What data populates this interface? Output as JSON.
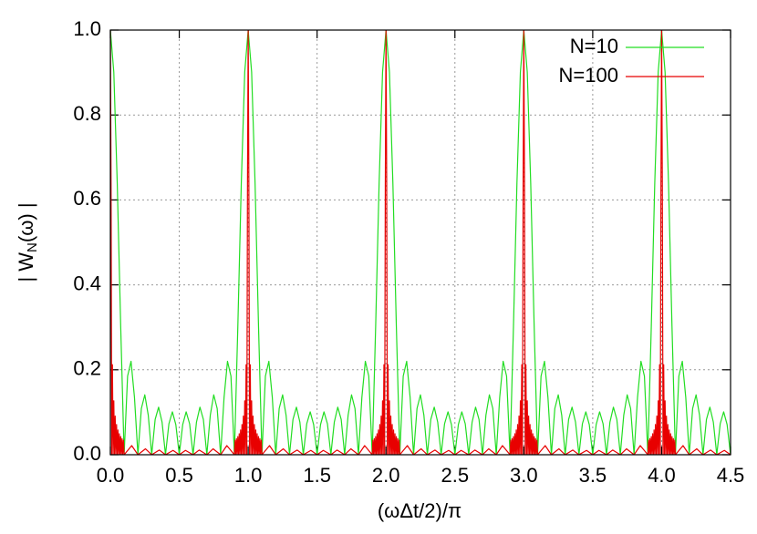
{
  "chart_data": {
    "type": "line",
    "xlabel": "(ωΔt/2)/π",
    "ylabel": {
      "text": "| W",
      "sub": "N",
      "tail": "(ω) |"
    },
    "xlim": [
      0,
      4.5
    ],
    "xticks": [
      {
        "value": 0,
        "label": "0.0"
      },
      0.5,
      {
        "value": 1,
        "label": "1.0"
      },
      1.5,
      {
        "value": 2,
        "label": "2.0"
      },
      2.5,
      {
        "value": 3,
        "label": "3.0"
      },
      3.5,
      {
        "value": 4,
        "label": "4.0"
      },
      4.5
    ],
    "ylim": [
      0,
      1
    ],
    "yticks": [
      {
        "value": 0,
        "label": "0.0"
      },
      0.2,
      0.4,
      0.6,
      0.8,
      {
        "value": 1,
        "label": "1.0"
      }
    ],
    "grid": true,
    "legend": "top-right",
    "series": [
      {
        "name": "N=10",
        "color": "#22dd22",
        "x": [
          0,
          0.025,
          0.05,
          0.075,
          0.1,
          0.125,
          0.15,
          0.175,
          0.2,
          0.225,
          0.25,
          0.275,
          0.3,
          0.325,
          0.35,
          0.375,
          0.4,
          0.425,
          0.45,
          0.475,
          0.5,
          0.525,
          0.55,
          0.575,
          0.6,
          0.625,
          0.65,
          0.675,
          0.7,
          0.725,
          0.75,
          0.775,
          0.8,
          0.825,
          0.85,
          0.875,
          0.9,
          0.925,
          0.95,
          0.975,
          1,
          1.025,
          1.05,
          1.075,
          1.1,
          1.125,
          1.15,
          1.175,
          1.2,
          1.225,
          1.25,
          1.275,
          1.3,
          1.325,
          1.35,
          1.375,
          1.4,
          1.425,
          1.45,
          1.475,
          1.5,
          1.525,
          1.55,
          1.575,
          1.6,
          1.625,
          1.65,
          1.675,
          1.7,
          1.725,
          1.75,
          1.775,
          1.8,
          1.825,
          1.85,
          1.875,
          1.9,
          1.925,
          1.95,
          1.975,
          2,
          2.025,
          2.05,
          2.075,
          2.1,
          2.125,
          2.15,
          2.175,
          2.2,
          2.225,
          2.25,
          2.275,
          2.3,
          2.325,
          2.35,
          2.375,
          2.4,
          2.425,
          2.45,
          2.475,
          2.5,
          2.525,
          2.55,
          2.575,
          2.6,
          2.625,
          2.65,
          2.675,
          2.7,
          2.725,
          2.75,
          2.775,
          2.8,
          2.825,
          2.85,
          2.875,
          2.9,
          2.925,
          2.95,
          2.975,
          3,
          3.025,
          3.05,
          3.075,
          3.1,
          3.125,
          3.15,
          3.175,
          3.2,
          3.225,
          3.25,
          3.275,
          3.3,
          3.325,
          3.35,
          3.375,
          3.4,
          3.425,
          3.45,
          3.475,
          3.5,
          3.525,
          3.55,
          3.575,
          3.6,
          3.625,
          3.65,
          3.675,
          3.7,
          3.725,
          3.75,
          3.775,
          3.8,
          3.825,
          3.85,
          3.875,
          3.9,
          3.925,
          3.95,
          3.975,
          4,
          4.025,
          4.05,
          4.075,
          4.1,
          4.125,
          4.15,
          4.175,
          4.2,
          4.225,
          4.25,
          4.275,
          4.3,
          4.325,
          4.35,
          4.375,
          4.4,
          4.425,
          4.45,
          4.475,
          4.5
        ],
        "values": [
          1,
          0.901,
          0.639,
          0.303,
          0,
          0.185,
          0.22,
          0.135,
          0,
          0.109,
          0.141,
          0.093,
          0,
          0.083,
          0.112,
          0.077,
          0,
          0.073,
          0.101,
          0.071,
          0,
          0.071,
          0.101,
          0.073,
          0,
          0.077,
          0.112,
          0.083,
          0,
          0.093,
          0.141,
          0.109,
          0,
          0.135,
          0.22,
          0.185,
          0,
          0.303,
          0.639,
          0.901,
          1,
          0.901,
          0.639,
          0.303,
          0,
          0.185,
          0.22,
          0.135,
          0,
          0.109,
          0.141,
          0.093,
          0,
          0.083,
          0.112,
          0.077,
          0,
          0.073,
          0.101,
          0.071,
          0,
          0.071,
          0.101,
          0.073,
          0,
          0.077,
          0.112,
          0.083,
          0,
          0.093,
          0.141,
          0.109,
          0,
          0.135,
          0.22,
          0.185,
          0,
          0.303,
          0.639,
          0.901,
          1,
          0.901,
          0.639,
          0.303,
          0,
          0.185,
          0.22,
          0.135,
          0,
          0.109,
          0.141,
          0.093,
          0,
          0.083,
          0.112,
          0.077,
          0,
          0.073,
          0.101,
          0.071,
          0,
          0.071,
          0.101,
          0.073,
          0,
          0.077,
          0.112,
          0.083,
          0,
          0.093,
          0.141,
          0.109,
          0,
          0.135,
          0.22,
          0.185,
          0,
          0.303,
          0.639,
          0.901,
          1,
          0.901,
          0.639,
          0.303,
          0,
          0.185,
          0.22,
          0.135,
          0,
          0.109,
          0.141,
          0.093,
          0,
          0.083,
          0.112,
          0.077,
          0,
          0.073,
          0.101,
          0.071,
          0,
          0.071,
          0.101,
          0.073,
          0,
          0.077,
          0.112,
          0.083,
          0,
          0.093,
          0.141,
          0.109,
          0,
          0.135,
          0.22,
          0.185,
          0,
          0.303,
          0.639,
          0.901,
          1,
          0.901,
          0.639,
          0.303,
          0,
          0.185,
          0.22,
          0.135,
          0,
          0.109,
          0.141,
          0.093,
          0,
          0.083,
          0.112,
          0.077,
          0,
          0.073,
          0.101,
          0.071,
          0
        ]
      },
      {
        "name": "N=100",
        "color": "#e80000",
        "x": [
          0,
          0.005,
          0.01,
          0.015,
          0.02,
          0.025,
          0.03,
          0.035,
          0.04,
          0.045,
          0.05,
          0.055,
          0.06,
          0.065,
          0.07,
          0.075,
          0.08,
          0.085,
          0.09,
          0.095,
          0.1,
          0.155,
          0.2,
          0.255,
          0.3,
          0.355,
          0.4,
          0.455,
          0.5,
          0.545,
          0.6,
          0.645,
          0.7,
          0.745,
          0.8,
          0.845,
          0.9,
          0.905,
          0.91,
          0.915,
          0.92,
          0.925,
          0.93,
          0.935,
          0.94,
          0.945,
          0.95,
          0.955,
          0.96,
          0.965,
          0.97,
          0.975,
          0.98,
          0.985,
          0.99,
          0.995,
          1,
          1.005,
          1.01,
          1.015,
          1.02,
          1.025,
          1.03,
          1.035,
          1.04,
          1.045,
          1.05,
          1.055,
          1.06,
          1.065,
          1.07,
          1.075,
          1.08,
          1.085,
          1.09,
          1.095,
          1.1,
          1.155,
          1.2,
          1.255,
          1.3,
          1.355,
          1.4,
          1.455,
          1.5,
          1.545,
          1.6,
          1.645,
          1.7,
          1.745,
          1.8,
          1.845,
          1.9,
          1.905,
          1.91,
          1.915,
          1.92,
          1.925,
          1.93,
          1.935,
          1.94,
          1.945,
          1.95,
          1.955,
          1.96,
          1.965,
          1.97,
          1.975,
          1.98,
          1.985,
          1.99,
          1.995,
          2,
          2.005,
          2.01,
          2.015,
          2.02,
          2.025,
          2.03,
          2.035,
          2.04,
          2.045,
          2.05,
          2.055,
          2.06,
          2.065,
          2.07,
          2.075,
          2.08,
          2.085,
          2.09,
          2.095,
          2.1,
          2.155,
          2.2,
          2.255,
          2.3,
          2.355,
          2.4,
          2.455,
          2.5,
          2.545,
          2.6,
          2.645,
          2.7,
          2.745,
          2.8,
          2.845,
          2.9,
          2.905,
          2.91,
          2.915,
          2.92,
          2.925,
          2.93,
          2.935,
          2.94,
          2.945,
          2.95,
          2.955,
          2.96,
          2.965,
          2.97,
          2.975,
          2.98,
          2.985,
          2.99,
          2.995,
          3,
          3.005,
          3.01,
          3.015,
          3.02,
          3.025,
          3.03,
          3.035,
          3.04,
          3.045,
          3.05,
          3.055,
          3.06,
          3.065,
          3.07,
          3.075,
          3.08,
          3.085,
          3.09,
          3.095,
          3.1,
          3.155,
          3.2,
          3.255,
          3.3,
          3.355,
          3.4,
          3.455,
          3.5,
          3.545,
          3.6,
          3.645,
          3.7,
          3.745,
          3.8,
          3.845,
          3.9,
          3.905,
          3.91,
          3.915,
          3.92,
          3.925,
          3.93,
          3.935,
          3.94,
          3.945,
          3.95,
          3.955,
          3.96,
          3.965,
          3.97,
          3.975,
          3.98,
          3.985,
          3.99,
          3.995,
          4,
          4.005,
          4.01,
          4.015,
          4.02,
          4.025,
          4.03,
          4.035,
          4.04,
          4.045,
          4.05,
          4.055,
          4.06,
          4.065,
          4.07,
          4.075,
          4.08,
          4.085,
          4.09,
          4.095,
          4.1,
          4.155,
          4.2,
          4.255,
          4.3,
          4.355,
          4.4,
          4.455,
          4.5
        ],
        "values": [
          1,
          0.637,
          0,
          0.212,
          0,
          0.127,
          0,
          0.0911,
          0,
          0.071,
          0,
          0.0582,
          0,
          0.0493,
          0,
          0.0428,
          0,
          0.0379,
          0,
          0.034,
          0,
          0.0215,
          0,
          0.0139,
          0,
          0.0111,
          0,
          0.0101,
          0,
          0.0101,
          0,
          0.0111,
          0,
          0.0139,
          0,
          0.0215,
          0,
          0.034,
          0,
          0.0379,
          0,
          0.0428,
          0,
          0.0493,
          0,
          0.0582,
          0,
          0.071,
          0,
          0.0911,
          0,
          0.127,
          0,
          0.212,
          0,
          0.637,
          1,
          0.637,
          0,
          0.212,
          0,
          0.127,
          0,
          0.0911,
          0,
          0.071,
          0,
          0.0582,
          0,
          0.0493,
          0,
          0.0428,
          0,
          0.0379,
          0,
          0.034,
          0,
          0.0215,
          0,
          0.0139,
          0,
          0.0111,
          0,
          0.0101,
          0,
          0.0101,
          0,
          0.0111,
          0,
          0.0139,
          0,
          0.0215,
          0,
          0.034,
          0,
          0.0379,
          0,
          0.0428,
          0,
          0.0493,
          0,
          0.0582,
          0,
          0.071,
          0,
          0.0911,
          0,
          0.127,
          0,
          0.212,
          0,
          0.637,
          1,
          0.637,
          0,
          0.212,
          0,
          0.127,
          0,
          0.0911,
          0,
          0.071,
          0,
          0.0582,
          0,
          0.0493,
          0,
          0.0428,
          0,
          0.0379,
          0,
          0.034,
          0,
          0.0215,
          0,
          0.0139,
          0,
          0.0111,
          0,
          0.0101,
          0,
          0.0101,
          0,
          0.0111,
          0,
          0.0139,
          0,
          0.0215,
          0,
          0.034,
          0,
          0.0379,
          0,
          0.0428,
          0,
          0.0493,
          0,
          0.0582,
          0,
          0.071,
          0,
          0.0911,
          0,
          0.127,
          0,
          0.212,
          0,
          0.637,
          1,
          0.637,
          0,
          0.212,
          0,
          0.127,
          0,
          0.0911,
          0,
          0.071,
          0,
          0.0582,
          0,
          0.0493,
          0,
          0.0428,
          0,
          0.0379,
          0,
          0.034,
          0,
          0.0215,
          0,
          0.0139,
          0,
          0.0111,
          0,
          0.0101,
          0,
          0.0101,
          0,
          0.0111,
          0,
          0.0139,
          0,
          0.0215,
          0,
          0.034,
          0,
          0.0379,
          0,
          0.0428,
          0,
          0.0493,
          0,
          0.0582,
          0,
          0.071,
          0,
          0.0911,
          0,
          0.127,
          0,
          0.212,
          0,
          0.637,
          1,
          0.637,
          0,
          0.212,
          0,
          0.127,
          0,
          0.0911,
          0,
          0.071,
          0,
          0.0582,
          0,
          0.0493,
          0,
          0.0428,
          0,
          0.0379,
          0,
          0.034,
          0,
          0.0215,
          0,
          0.0139,
          0,
          0.0111,
          0,
          0.0101,
          0
        ]
      }
    ]
  }
}
